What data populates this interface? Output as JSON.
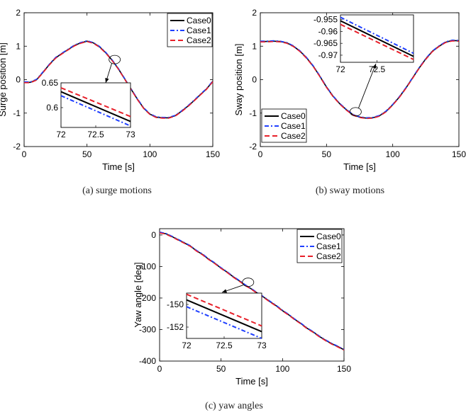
{
  "legend_labels": [
    "Case0",
    "Case1",
    "Case2"
  ],
  "series_styles": [
    {
      "color": "#000000",
      "dash": ""
    },
    {
      "color": "#1f3fff",
      "dash": "6,3,2,3"
    },
    {
      "color": "#e8202a",
      "dash": "7,4"
    }
  ],
  "chart_data": [
    {
      "type": "line",
      "caption": "(a) surge motions",
      "xlabel": "Time [s]",
      "ylabel": "Surge position [m]",
      "xlim": [
        0,
        150
      ],
      "ylim": [
        -2,
        2
      ],
      "xticks": [
        0,
        50,
        100,
        150
      ],
      "yticks": [
        -2,
        -1,
        0,
        1,
        2
      ],
      "legend": "top-right",
      "x": [
        0,
        5,
        10,
        15,
        20,
        25,
        30,
        35,
        40,
        45,
        50,
        55,
        60,
        65,
        70,
        75,
        80,
        85,
        90,
        95,
        100,
        105,
        110,
        115,
        120,
        125,
        130,
        135,
        140,
        145,
        150
      ],
      "y": [
        -0.08,
        -0.08,
        0.0,
        0.22,
        0.45,
        0.65,
        0.78,
        0.9,
        1.02,
        1.1,
        1.15,
        1.1,
        0.98,
        0.8,
        0.58,
        0.32,
        0.02,
        -0.28,
        -0.58,
        -0.85,
        -1.03,
        -1.12,
        -1.14,
        -1.14,
        -1.08,
        -0.95,
        -0.8,
        -0.63,
        -0.45,
        -0.28,
        -0.05
      ],
      "inset": {
        "xlim": [
          72,
          73
        ],
        "ylim": [
          0.56,
          0.65
        ],
        "xticks": [
          72,
          72.5,
          73
        ],
        "ytick_labels": [
          "0.65",
          "0.6"
        ],
        "ytick_values": [
          0.65,
          0.6
        ],
        "xtick_labels": [
          "72",
          "72.5",
          "73"
        ],
        "series": [
          {
            "name": "Case0",
            "x": [
              72,
              73
            ],
            "y": [
              0.632,
              0.572
            ]
          },
          {
            "name": "Case1",
            "x": [
              72,
              73
            ],
            "y": [
              0.624,
              0.563
            ]
          },
          {
            "name": "Case2",
            "x": [
              72,
              73
            ],
            "y": [
              0.64,
              0.582
            ]
          }
        ]
      }
    },
    {
      "type": "line",
      "caption": "(b) sway motions",
      "xlabel": "Time [s]",
      "ylabel": "Sway position [m]",
      "xlim": [
        0,
        150
      ],
      "ylim": [
        -2,
        2
      ],
      "xticks": [
        0,
        50,
        100,
        150
      ],
      "yticks": [
        -2,
        -1,
        0,
        1,
        2
      ],
      "legend": "bottom-left",
      "x": [
        0,
        5,
        10,
        15,
        20,
        25,
        30,
        35,
        40,
        45,
        50,
        55,
        60,
        65,
        70,
        75,
        80,
        85,
        90,
        95,
        100,
        105,
        110,
        115,
        120,
        125,
        130,
        135,
        140,
        145,
        150
      ],
      "y": [
        1.14,
        1.14,
        1.15,
        1.14,
        1.1,
        1.0,
        0.85,
        0.65,
        0.4,
        0.1,
        -0.22,
        -0.5,
        -0.72,
        -0.9,
        -1.05,
        -1.12,
        -1.15,
        -1.14,
        -1.08,
        -0.95,
        -0.75,
        -0.52,
        -0.25,
        0.05,
        0.35,
        0.62,
        0.85,
        1.0,
        1.12,
        1.17,
        1.16
      ],
      "inset": {
        "xlim": [
          72,
          73
        ],
        "ylim": [
          -0.973,
          -0.953
        ],
        "xticks": [
          72,
          72.5
        ],
        "xtick_labels": [
          "72",
          "72.5"
        ],
        "ytick_labels": [
          "-0.955",
          "-0.96",
          "-0.965",
          "-0.97"
        ],
        "ytick_values": [
          -0.955,
          -0.96,
          -0.965,
          -0.97
        ],
        "series": [
          {
            "name": "Case0",
            "x": [
              72,
              73
            ],
            "y": [
              -0.9555,
              -0.9705
            ]
          },
          {
            "name": "Case1",
            "x": [
              72,
              73
            ],
            "y": [
              -0.954,
              -0.9692
            ]
          },
          {
            "name": "Case2",
            "x": [
              72,
              73
            ],
            "y": [
              -0.957,
              -0.9718
            ]
          }
        ]
      }
    },
    {
      "type": "line",
      "caption": "(c) yaw angles",
      "xlabel": "Time [s]",
      "ylabel": "Yaw angle [deg]",
      "xlim": [
        0,
        150
      ],
      "ylim": [
        -400,
        20
      ],
      "xticks": [
        0,
        50,
        100,
        150
      ],
      "yticks": [
        -400,
        -300,
        -200,
        -100,
        0
      ],
      "legend": "top-right",
      "x": [
        0,
        5,
        10,
        15,
        20,
        25,
        30,
        35,
        40,
        45,
        50,
        55,
        60,
        65,
        70,
        75,
        80,
        85,
        90,
        95,
        100,
        105,
        110,
        115,
        120,
        125,
        130,
        135,
        140,
        145,
        150
      ],
      "y": [
        8,
        4,
        -5,
        -15,
        -25,
        -35,
        -50,
        -62,
        -77,
        -90,
        -105,
        -118,
        -133,
        -146,
        -160,
        -172,
        -186,
        -198,
        -212,
        -225,
        -240,
        -253,
        -268,
        -281,
        -296,
        -308,
        -322,
        -334,
        -345,
        -354,
        -364
      ],
      "inset": {
        "xlim": [
          72,
          73
        ],
        "ylim": [
          -153,
          -149
        ],
        "xticks": [
          72,
          72.5,
          73
        ],
        "xtick_labels": [
          "72",
          "72.5",
          "73"
        ],
        "ytick_labels": [
          "-150",
          "-152"
        ],
        "ytick_values": [
          -150,
          -152
        ],
        "series": [
          {
            "name": "Case0",
            "x": [
              72,
              73
            ],
            "y": [
              -149.6,
              -152.4
            ]
          },
          {
            "name": "Case1",
            "x": [
              72,
              73
            ],
            "y": [
              -150.2,
              -153.0
            ]
          },
          {
            "name": "Case2",
            "x": [
              72,
              73
            ],
            "y": [
              -149.1,
              -151.9
            ]
          }
        ]
      }
    }
  ]
}
